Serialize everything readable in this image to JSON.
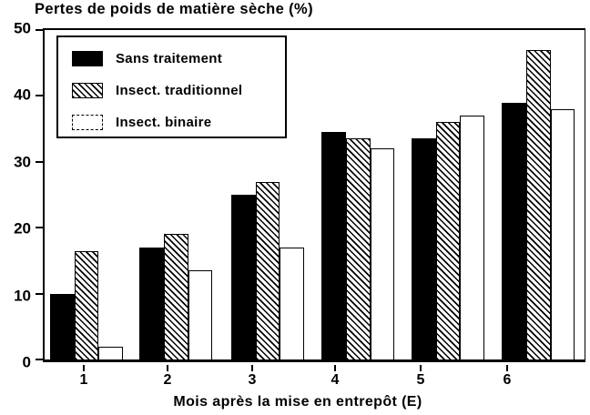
{
  "chart_data": {
    "type": "bar",
    "title": "Pertes de poids de matière sèche (%)",
    "xlabel": "Mois après la mise en entrepôt (E)",
    "ylabel": "Pertes de poids de matière sèche (%)",
    "categories": [
      "1",
      "2",
      "3",
      "4",
      "5",
      "6"
    ],
    "series": [
      {
        "name": "Sans traitement",
        "pattern": "solid-black",
        "values": [
          10,
          17,
          25,
          34.5,
          33.5,
          39
        ]
      },
      {
        "name": "Insect. traditionnel",
        "pattern": "diagonal-hatch",
        "values": [
          16.5,
          19,
          27,
          33.5,
          36,
          47
        ]
      },
      {
        "name": "Insect. binaire",
        "pattern": "white-outline",
        "values": [
          2,
          13.5,
          17,
          32,
          37,
          38
        ]
      }
    ],
    "ylim": [
      0,
      50
    ],
    "yticks": [
      0,
      10,
      20,
      30,
      40,
      50
    ],
    "grid": false,
    "legend_position": "upper-left-inside",
    "unit": "%"
  },
  "colors": {
    "ink": "#000000",
    "background": "#ffffff"
  }
}
